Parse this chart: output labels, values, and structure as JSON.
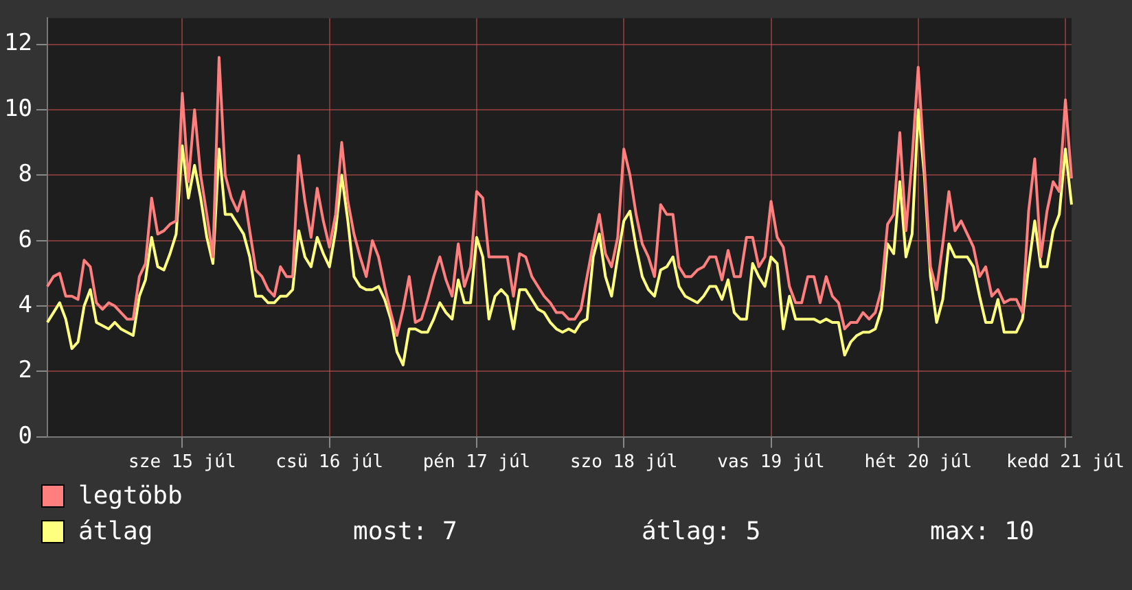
{
  "chart_data": {
    "type": "line",
    "categories": [
      null,
      null,
      null,
      null,
      null,
      null,
      null,
      null,
      null,
      null,
      null,
      null,
      null,
      null,
      null,
      null,
      null,
      null,
      null,
      null,
      null,
      null,
      "sze 15 júl",
      null,
      null,
      null,
      null,
      null,
      null,
      null,
      null,
      null,
      null,
      null,
      null,
      null,
      null,
      null,
      null,
      null,
      null,
      null,
      null,
      null,
      null,
      null,
      "csü 16 júl",
      null,
      null,
      null,
      null,
      null,
      null,
      null,
      null,
      null,
      null,
      null,
      null,
      null,
      null,
      null,
      null,
      null,
      null,
      null,
      null,
      null,
      null,
      null,
      "pén 17 júl",
      null,
      null,
      null,
      null,
      null,
      null,
      null,
      null,
      null,
      null,
      null,
      null,
      null,
      null,
      null,
      null,
      null,
      null,
      null,
      null,
      null,
      null,
      null,
      "szo 18 júl",
      null,
      null,
      null,
      null,
      null,
      null,
      null,
      null,
      null,
      null,
      null,
      null,
      null,
      null,
      null,
      null,
      null,
      null,
      null,
      null,
      null,
      null,
      null,
      "vas 19 júl",
      null,
      null,
      null,
      null,
      null,
      null,
      null,
      null,
      null,
      null,
      null,
      null,
      null,
      null,
      null,
      null,
      null,
      null,
      null,
      null,
      null,
      null,
      null,
      "hét 20 júl",
      null,
      null,
      null,
      null,
      null,
      null,
      null,
      null,
      null,
      null,
      null,
      null,
      null,
      null,
      null,
      null,
      null,
      null,
      null,
      null,
      null,
      null,
      null,
      "kedd 21 júl",
      null
    ],
    "ylim": [
      0,
      12.8
    ],
    "yticks": [
      0,
      2,
      4,
      6,
      8,
      10,
      12
    ],
    "series": [
      {
        "name": "legtöbb",
        "color": "#ff7f7f",
        "values": [
          4.6,
          4.9,
          5.0,
          4.3,
          4.3,
          4.2,
          5.4,
          5.2,
          4.1,
          3.9,
          4.1,
          4.0,
          3.8,
          3.6,
          3.6,
          4.9,
          5.3,
          7.3,
          6.2,
          6.3,
          6.5,
          6.6,
          10.5,
          7.8,
          10.0,
          8.0,
          6.8,
          5.5,
          11.6,
          8.0,
          7.3,
          6.9,
          7.5,
          6.3,
          5.1,
          4.9,
          4.5,
          4.3,
          5.2,
          4.9,
          4.9,
          8.6,
          7.2,
          6.1,
          7.6,
          6.6,
          5.8,
          6.8,
          9.0,
          7.2,
          6.2,
          5.5,
          4.9,
          6.0,
          5.5,
          4.6,
          3.8,
          3.1,
          3.9,
          4.9,
          3.5,
          3.6,
          4.2,
          4.9,
          5.5,
          4.8,
          4.3,
          5.9,
          4.6,
          5.2,
          7.5,
          7.3,
          5.5,
          5.5,
          5.5,
          5.5,
          4.3,
          5.6,
          5.5,
          4.9,
          4.6,
          4.3,
          4.1,
          3.8,
          3.8,
          3.6,
          3.6,
          3.9,
          4.9,
          5.9,
          6.8,
          5.6,
          5.2,
          6.1,
          8.8,
          8.0,
          6.8,
          5.9,
          5.5,
          4.9,
          7.1,
          6.8,
          6.8,
          5.2,
          4.9,
          4.9,
          5.1,
          5.2,
          5.5,
          5.5,
          4.8,
          5.7,
          4.9,
          4.9,
          6.1,
          6.1,
          5.2,
          5.5,
          7.2,
          6.1,
          5.8,
          4.6,
          4.1,
          4.1,
          4.9,
          4.9,
          4.1,
          4.9,
          4.3,
          4.1,
          3.3,
          3.5,
          3.5,
          3.8,
          3.6,
          3.8,
          4.5,
          6.5,
          6.8,
          9.3,
          6.3,
          8.5,
          11.3,
          8.3,
          5.2,
          4.5,
          5.9,
          7.5,
          6.3,
          6.6,
          6.2,
          5.8,
          4.9,
          5.2,
          4.3,
          4.5,
          4.1,
          4.2,
          4.2,
          3.8,
          6.9,
          8.5,
          5.5,
          6.9,
          7.8,
          7.5,
          10.3,
          7.9
        ]
      },
      {
        "name": "átlag",
        "color": "#ffff7f",
        "values": [
          3.5,
          3.8,
          4.1,
          3.6,
          2.7,
          2.9,
          4.0,
          4.5,
          3.5,
          3.4,
          3.3,
          3.5,
          3.3,
          3.2,
          3.1,
          4.3,
          4.8,
          6.1,
          5.2,
          5.1,
          5.6,
          6.2,
          8.9,
          7.3,
          8.3,
          7.3,
          6.1,
          5.3,
          8.8,
          6.8,
          6.8,
          6.5,
          6.2,
          5.5,
          4.3,
          4.3,
          4.1,
          4.1,
          4.3,
          4.3,
          4.5,
          6.3,
          5.5,
          5.2,
          6.1,
          5.6,
          5.2,
          6.3,
          8.0,
          6.6,
          4.9,
          4.6,
          4.5,
          4.5,
          4.6,
          4.2,
          3.6,
          2.6,
          2.2,
          3.3,
          3.3,
          3.2,
          3.2,
          3.6,
          4.1,
          3.8,
          3.6,
          4.8,
          4.1,
          4.1,
          6.1,
          5.5,
          3.6,
          4.3,
          4.5,
          4.3,
          3.3,
          4.5,
          4.5,
          4.2,
          3.9,
          3.8,
          3.5,
          3.3,
          3.2,
          3.3,
          3.2,
          3.5,
          3.6,
          5.5,
          6.2,
          4.9,
          4.3,
          5.5,
          6.6,
          6.9,
          5.8,
          4.9,
          4.5,
          4.3,
          5.1,
          5.2,
          5.5,
          4.6,
          4.3,
          4.2,
          4.1,
          4.3,
          4.6,
          4.6,
          4.2,
          4.8,
          3.8,
          3.6,
          3.6,
          5.3,
          4.9,
          4.6,
          5.5,
          5.3,
          3.3,
          4.3,
          3.6,
          3.6,
          3.6,
          3.6,
          3.5,
          3.6,
          3.5,
          3.5,
          2.5,
          2.9,
          3.1,
          3.2,
          3.2,
          3.3,
          3.9,
          5.9,
          5.6,
          7.8,
          5.5,
          6.2,
          10.0,
          8.0,
          4.9,
          3.5,
          4.2,
          5.9,
          5.5,
          5.5,
          5.5,
          5.2,
          4.3,
          3.5,
          3.5,
          4.2,
          3.2,
          3.2,
          3.2,
          3.6,
          5.2,
          6.6,
          5.2,
          5.2,
          6.3,
          6.8,
          8.8,
          7.1
        ]
      }
    ],
    "grid": true,
    "legend": "bottom",
    "marker": "none",
    "line_style": "solid",
    "annotations": [
      "most: 7",
      "átlag: 5",
      "max: 10"
    ]
  }
}
